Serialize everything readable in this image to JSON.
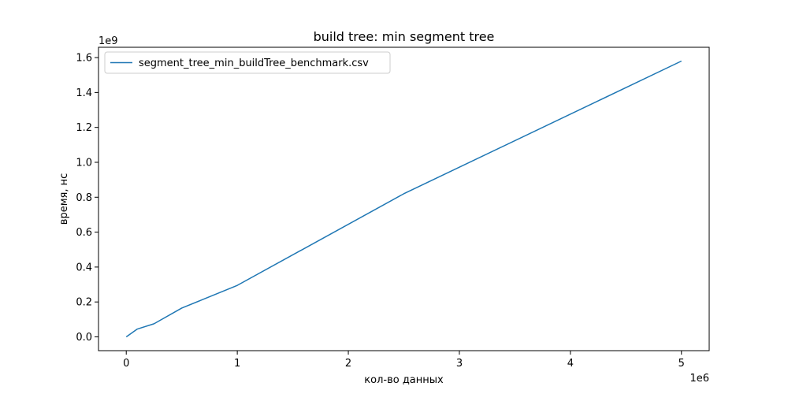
{
  "chart_data": {
    "type": "line",
    "title": "build tree: min segment tree",
    "xlabel": "кол-во данных",
    "ylabel": "время, нс",
    "x_offset_label": "1e6",
    "y_offset_label": "1e9",
    "x_scale": 1000000,
    "y_scale": 1000000000,
    "xlim": [
      -250000,
      5250000
    ],
    "ylim": [
      -79000000,
      1659000000
    ],
    "x_ticks": [
      0,
      1000000,
      2000000,
      3000000,
      4000000,
      5000000
    ],
    "x_tick_labels": [
      "0",
      "1",
      "2",
      "3",
      "4",
      "5"
    ],
    "y_ticks": [
      0,
      200000000,
      400000000,
      600000000,
      800000000,
      1000000000,
      1200000000,
      1400000000,
      1600000000
    ],
    "y_tick_labels": [
      "0.0",
      "0.2",
      "0.4",
      "0.6",
      "0.8",
      "1.0",
      "1.2",
      "1.4",
      "1.6"
    ],
    "grid": false,
    "legend_position": "top-left",
    "series": [
      {
        "name": "segment_tree_min_buildTree_benchmark.csv",
        "color": "#1f77b4",
        "x": [
          0,
          100000,
          250000,
          500000,
          1000000,
          2500000,
          5000000
        ],
        "y": [
          0,
          45000000,
          75000000,
          165000000,
          295000000,
          820000000,
          1580000000
        ]
      }
    ]
  }
}
